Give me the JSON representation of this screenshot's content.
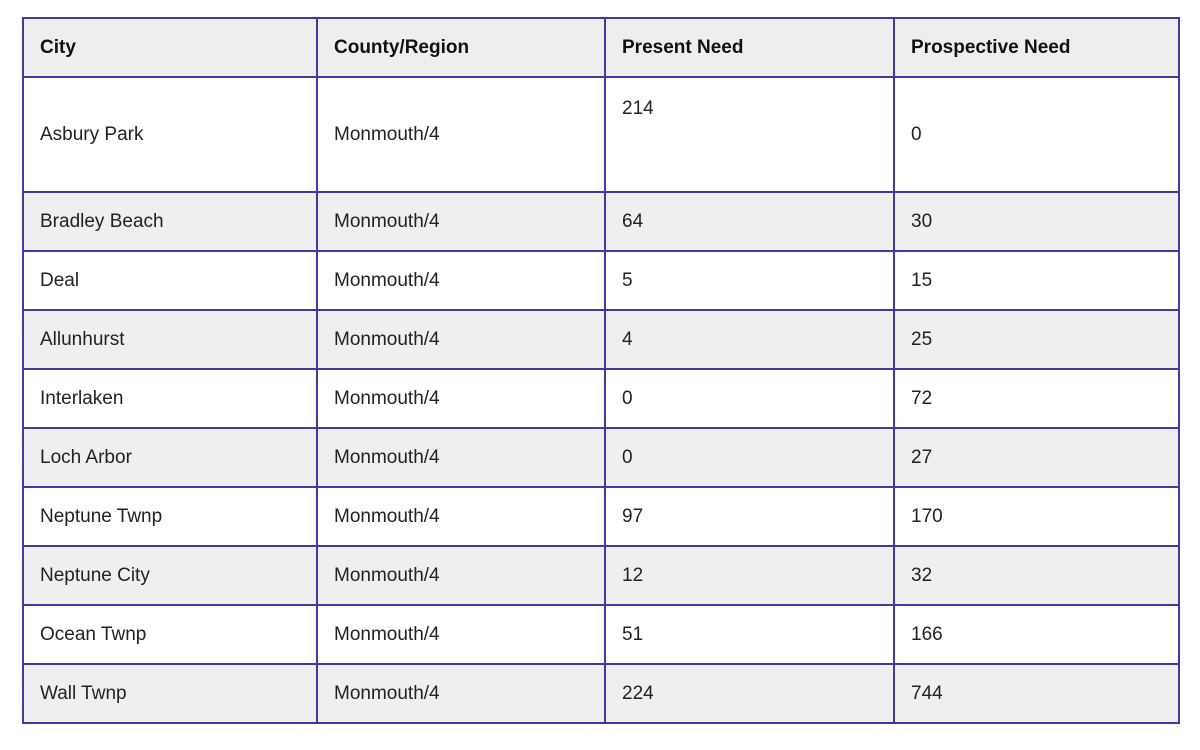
{
  "colors": {
    "border": "#4338a8",
    "header_bg": "#eeeeee",
    "alt_row_bg": "#efefef",
    "row_bg": "#ffffff",
    "text": "#222222"
  },
  "table": {
    "headers": {
      "city": "City",
      "county_region": "County/Region",
      "present_need": "Present Need",
      "prospective_need": "Prospective Need"
    },
    "rows": [
      {
        "city": "Asbury Park",
        "county_region": "Monmouth/4",
        "present_need": "214",
        "prospective_need": "0"
      },
      {
        "city": "Bradley Beach",
        "county_region": "Monmouth/4",
        "present_need": "64",
        "prospective_need": "30"
      },
      {
        "city": "Deal",
        "county_region": "Monmouth/4",
        "present_need": "5",
        "prospective_need": "15"
      },
      {
        "city": "Allunhurst",
        "county_region": "Monmouth/4",
        "present_need": "4",
        "prospective_need": "25"
      },
      {
        "city": "Interlaken",
        "county_region": "Monmouth/4",
        "present_need": "0",
        "prospective_need": "72"
      },
      {
        "city": "Loch Arbor",
        "county_region": "Monmouth/4",
        "present_need": "0",
        "prospective_need": "27"
      },
      {
        "city": "Neptune Twnp",
        "county_region": "Monmouth/4",
        "present_need": "97",
        "prospective_need": "170"
      },
      {
        "city": "Neptune City",
        "county_region": "Monmouth/4",
        "present_need": "12",
        "prospective_need": "32"
      },
      {
        "city": "Ocean Twnp",
        "county_region": "Monmouth/4",
        "present_need": "51",
        "prospective_need": "166"
      },
      {
        "city": "Wall Twnp",
        "county_region": "Monmouth/4",
        "present_need": "224",
        "prospective_need": "744"
      }
    ]
  }
}
